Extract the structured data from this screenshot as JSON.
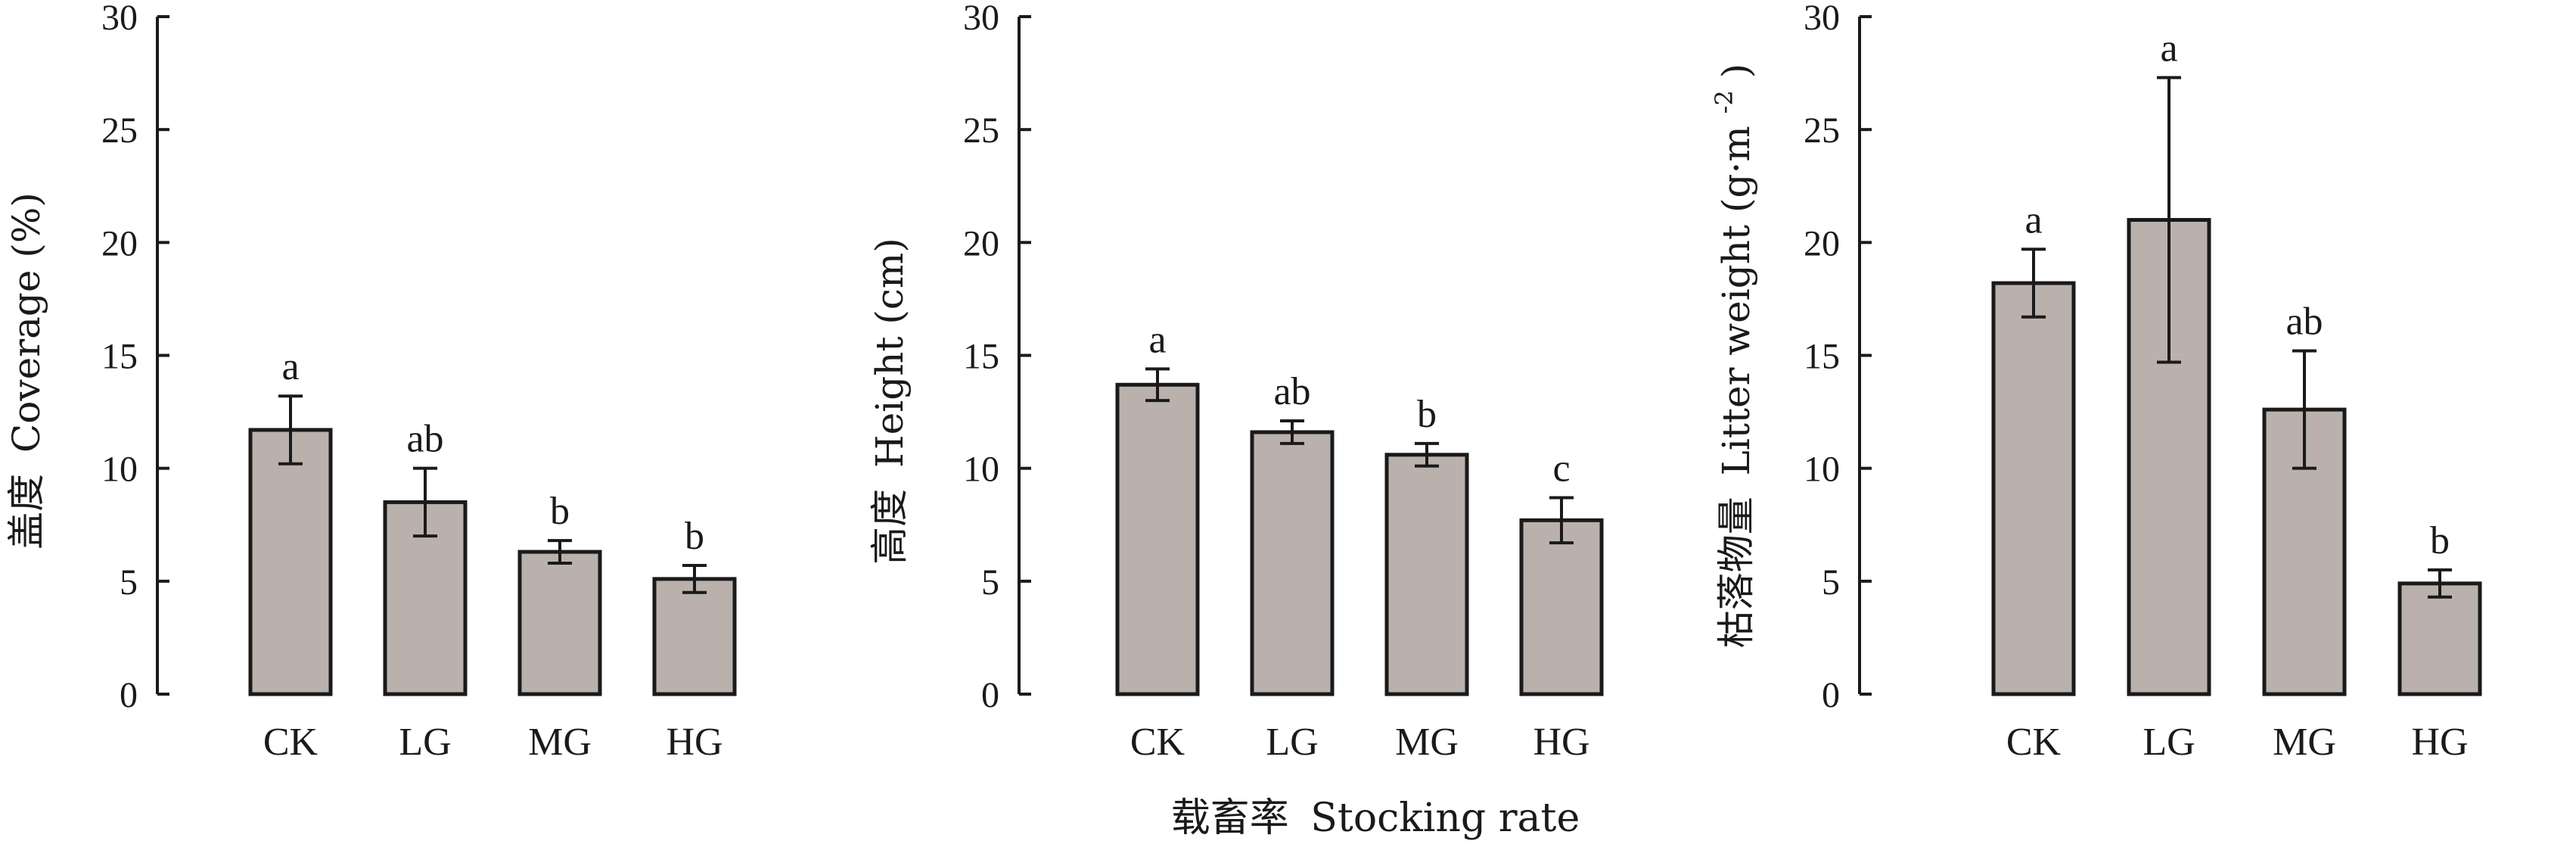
{
  "chart_data": [
    {
      "type": "bar",
      "categories": [
        "CK",
        "LG",
        "MG",
        "HG"
      ],
      "values": [
        11.7,
        8.5,
        6.3,
        5.1
      ],
      "errors": [
        1.5,
        1.5,
        0.5,
        0.6
      ],
      "significance": [
        "a",
        "ab",
        "b",
        "b"
      ],
      "ylabel_cn": "盖度",
      "ylabel_en": "Coverage (%)",
      "ylim": [
        0,
        30
      ],
      "yticks": [
        0,
        5,
        10,
        15,
        20,
        25,
        30
      ],
      "grid": false
    },
    {
      "type": "bar",
      "categories": [
        "CK",
        "LG",
        "MG",
        "HG"
      ],
      "values": [
        13.7,
        11.6,
        10.6,
        7.7
      ],
      "errors": [
        0.7,
        0.5,
        0.5,
        1.0
      ],
      "significance": [
        "a",
        "ab",
        "b",
        "c"
      ],
      "ylabel_cn": "高度",
      "ylabel_en": "Height (cm)",
      "ylim": [
        0,
        30
      ],
      "yticks": [
        0,
        5,
        10,
        15,
        20,
        25,
        30
      ],
      "grid": false
    },
    {
      "type": "bar",
      "categories": [
        "CK",
        "LG",
        "MG",
        "HG"
      ],
      "values": [
        18.2,
        21.0,
        12.6,
        4.9
      ],
      "errors": [
        1.5,
        6.3,
        2.6,
        0.6
      ],
      "significance": [
        "a",
        "a",
        "ab",
        "b"
      ],
      "ylabel_cn": "枯落物量",
      "ylabel_en": "Litter weight (g·m",
      "ylabel_sup": "-2",
      "ylabel_close": ")",
      "ylim": [
        0,
        30
      ],
      "yticks": [
        0,
        5,
        10,
        15,
        20,
        25,
        30
      ],
      "grid": false
    }
  ],
  "shared_xlabel": {
    "cn": "载畜率",
    "en": "Stocking rate"
  }
}
